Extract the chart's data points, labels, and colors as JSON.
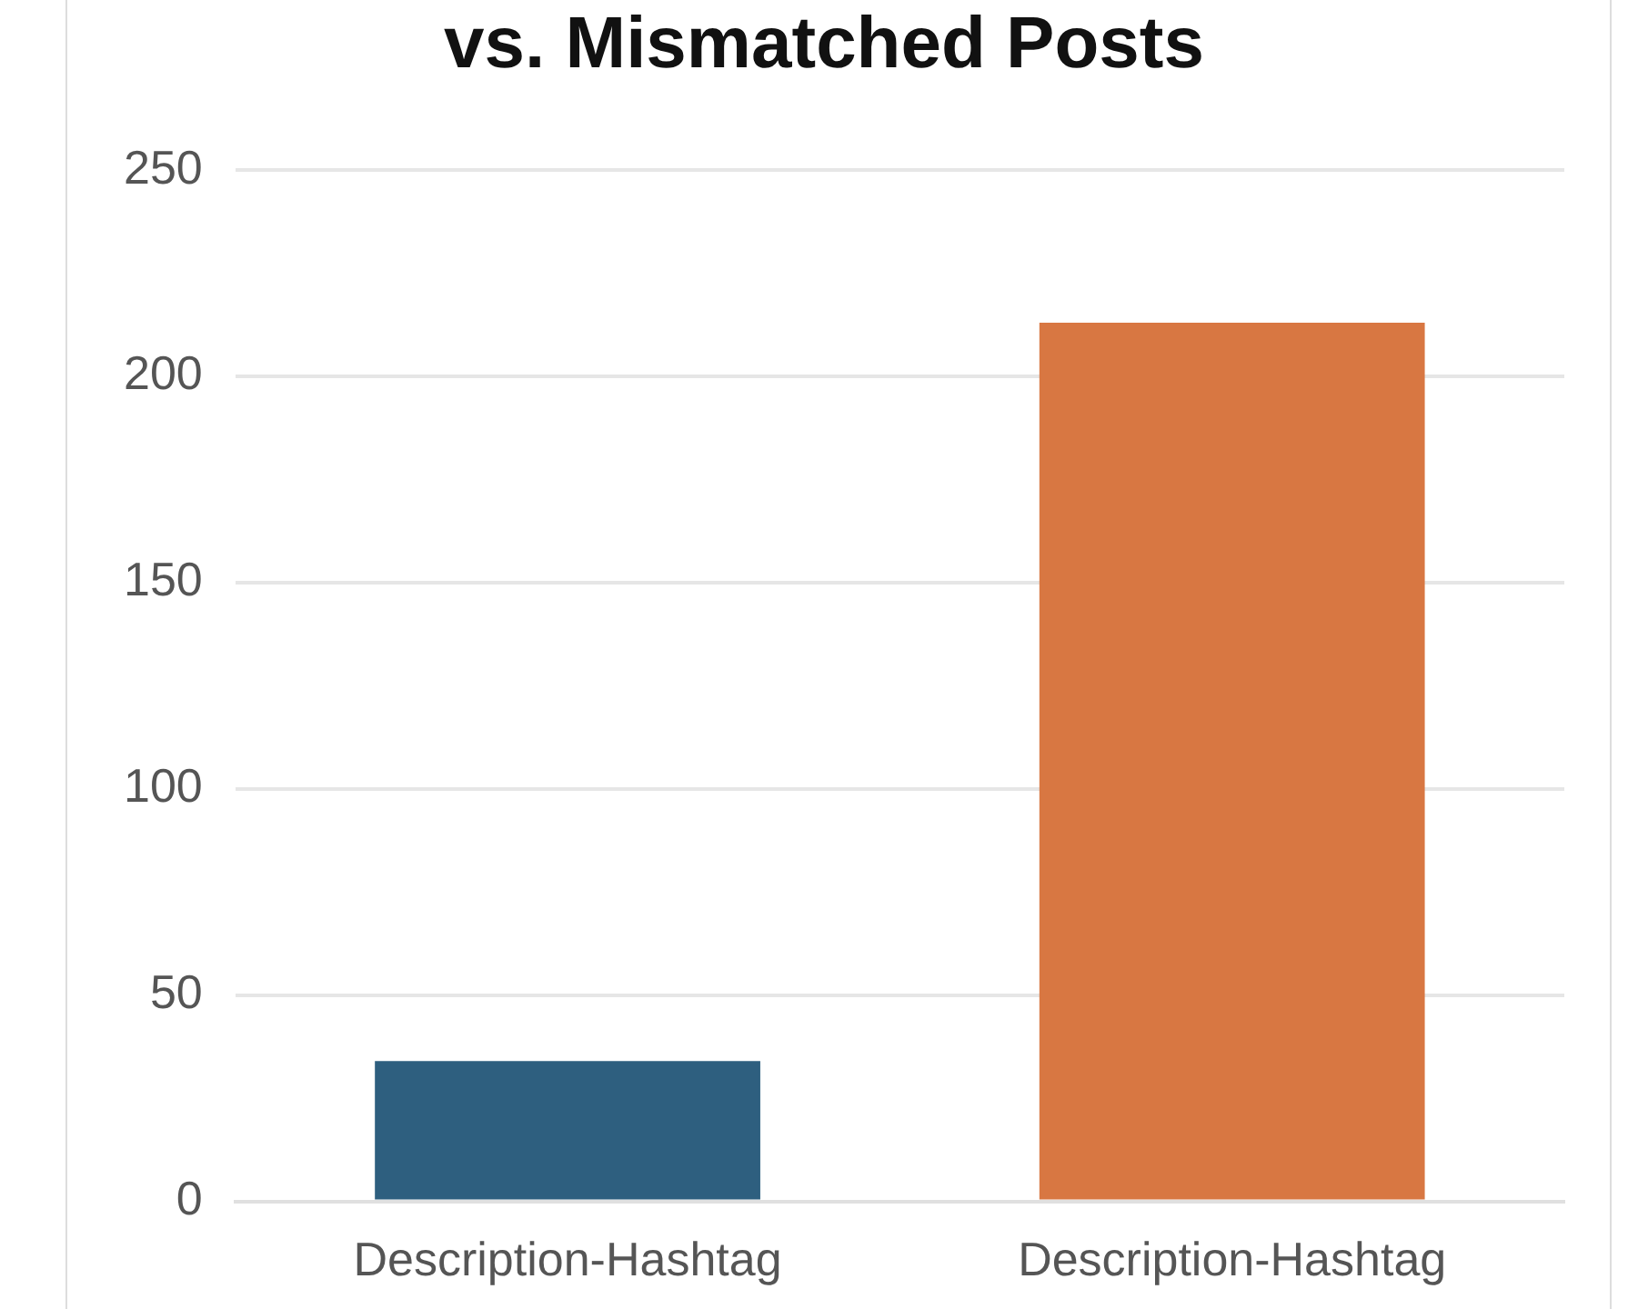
{
  "chart_data": {
    "type": "bar",
    "title": "vs. Mismatched Posts",
    "categories": [
      "Description-Hashtag",
      "Description-Hashtag"
    ],
    "values": [
      34,
      213
    ],
    "colors": [
      "#2e5f7f",
      "#d87742"
    ],
    "ylim": [
      0,
      250
    ],
    "yticks": [
      0,
      50,
      100,
      150,
      200,
      250
    ],
    "grid": "y",
    "legend": false
  }
}
